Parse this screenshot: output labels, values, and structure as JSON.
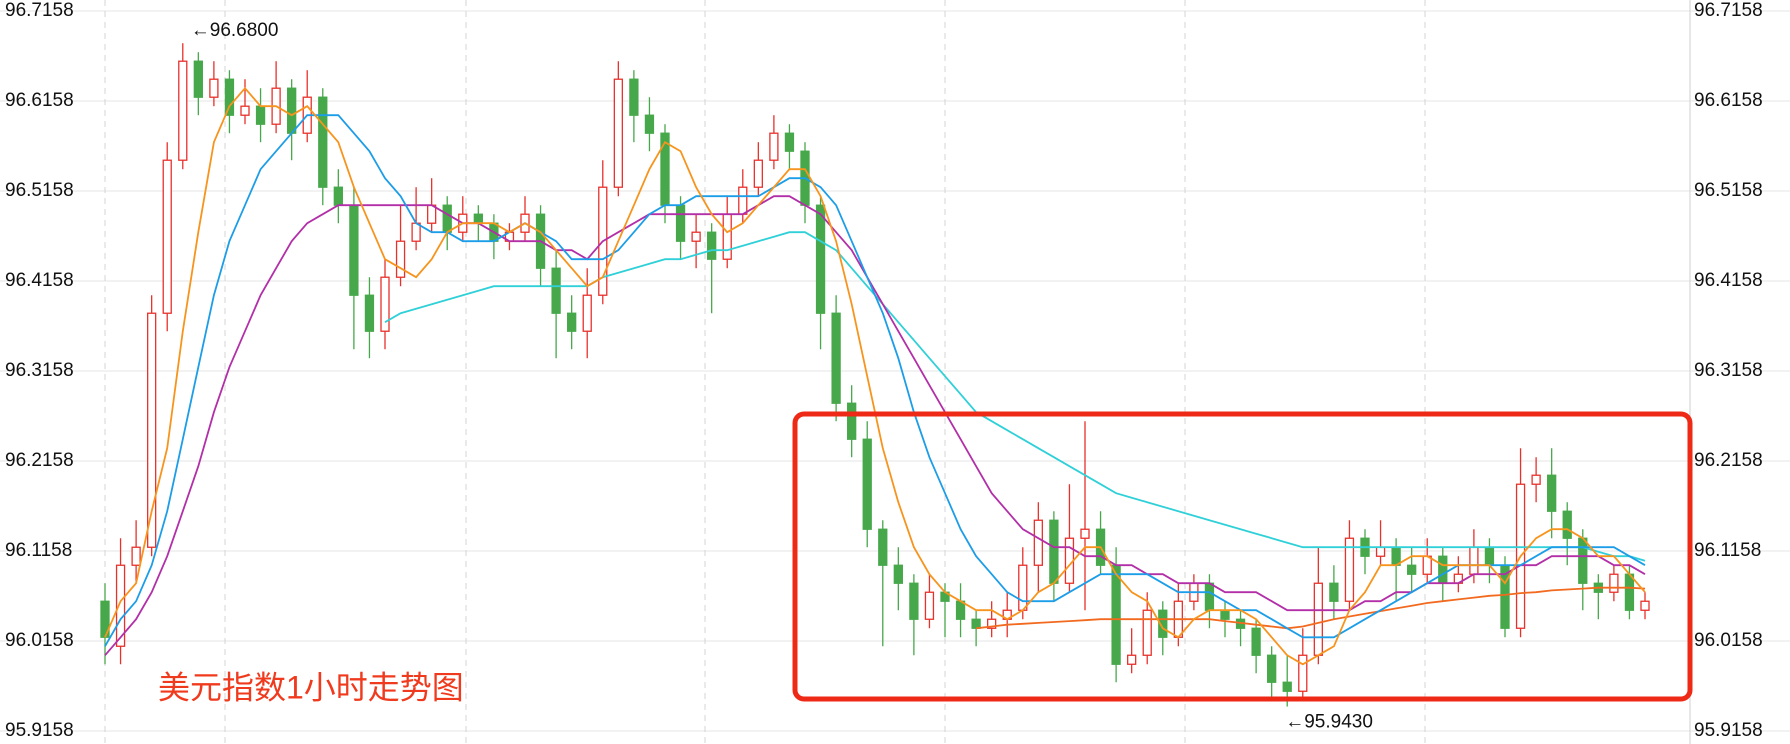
{
  "chart_data": {
    "type": "candlestick",
    "title": "美元指数1小时走势图",
    "annotations": [
      "←96.6800",
      "←95.9430"
    ],
    "ylim": [
      95.9014,
      96.728
    ],
    "yticks": [
      95.9158,
      96.0158,
      96.1158,
      96.2158,
      96.3158,
      96.4158,
      96.5158,
      96.6158,
      96.7158
    ],
    "grid": true,
    "up_color": "#e8312b",
    "down_color": "#47a84b",
    "title_color": "#f03a1e",
    "ohlc": [
      [
        96.06,
        96.08,
        95.99,
        96.02
      ],
      [
        96.01,
        96.13,
        95.99,
        96.1
      ],
      [
        96.1,
        96.15,
        96.08,
        96.12
      ],
      [
        96.12,
        96.4,
        96.11,
        96.38
      ],
      [
        96.38,
        96.57,
        96.36,
        96.55
      ],
      [
        96.55,
        96.68,
        96.54,
        96.66
      ],
      [
        96.66,
        96.67,
        96.6,
        96.62
      ],
      [
        96.62,
        96.66,
        96.61,
        96.64
      ],
      [
        96.64,
        96.65,
        96.58,
        96.6
      ],
      [
        96.6,
        96.64,
        96.59,
        96.61
      ],
      [
        96.61,
        96.63,
        96.57,
        96.59
      ],
      [
        96.59,
        96.66,
        96.58,
        96.63
      ],
      [
        96.63,
        96.64,
        96.55,
        96.58
      ],
      [
        96.58,
        96.65,
        96.57,
        96.62
      ],
      [
        96.62,
        96.63,
        96.5,
        96.52
      ],
      [
        96.52,
        96.54,
        96.48,
        96.5
      ],
      [
        96.5,
        96.52,
        96.34,
        96.4
      ],
      [
        96.4,
        96.42,
        96.33,
        96.36
      ],
      [
        96.36,
        96.44,
        96.34,
        96.42
      ],
      [
        96.42,
        96.5,
        96.41,
        96.46
      ],
      [
        96.46,
        96.52,
        96.45,
        96.48
      ],
      [
        96.48,
        96.53,
        96.47,
        96.5
      ],
      [
        96.5,
        96.51,
        96.45,
        96.47
      ],
      [
        96.47,
        96.51,
        96.46,
        96.49
      ],
      [
        96.49,
        96.5,
        96.46,
        96.48
      ],
      [
        96.48,
        96.49,
        96.44,
        96.46
      ],
      [
        96.46,
        96.48,
        96.45,
        96.47
      ],
      [
        96.47,
        96.51,
        96.46,
        96.49
      ],
      [
        96.49,
        96.5,
        96.41,
        96.43
      ],
      [
        96.43,
        96.45,
        96.33,
        96.38
      ],
      [
        96.38,
        96.4,
        96.34,
        96.36
      ],
      [
        96.36,
        96.43,
        96.33,
        96.4
      ],
      [
        96.4,
        96.55,
        96.39,
        96.52
      ],
      [
        96.52,
        96.66,
        96.51,
        96.64
      ],
      [
        96.64,
        96.65,
        96.57,
        96.6
      ],
      [
        96.6,
        96.62,
        96.56,
        96.58
      ],
      [
        96.58,
        96.59,
        96.48,
        96.5
      ],
      [
        96.5,
        96.51,
        96.44,
        96.46
      ],
      [
        96.46,
        96.49,
        96.43,
        96.47
      ],
      [
        96.47,
        96.48,
        96.38,
        96.44
      ],
      [
        96.44,
        96.51,
        96.43,
        96.49
      ],
      [
        96.49,
        96.54,
        96.48,
        96.52
      ],
      [
        96.52,
        96.57,
        96.51,
        96.55
      ],
      [
        96.55,
        96.6,
        96.54,
        96.58
      ],
      [
        96.58,
        96.59,
        96.54,
        96.56
      ],
      [
        96.56,
        96.57,
        96.48,
        96.5
      ],
      [
        96.5,
        96.51,
        96.34,
        96.38
      ],
      [
        96.38,
        96.4,
        96.26,
        96.28
      ],
      [
        96.28,
        96.3,
        96.22,
        96.24
      ],
      [
        96.24,
        96.26,
        96.12,
        96.14
      ],
      [
        96.14,
        96.15,
        96.01,
        96.1
      ],
      [
        96.1,
        96.12,
        96.05,
        96.08
      ],
      [
        96.08,
        96.09,
        96.0,
        96.04
      ],
      [
        96.04,
        96.09,
        96.03,
        96.07
      ],
      [
        96.07,
        96.08,
        96.02,
        96.06
      ],
      [
        96.06,
        96.08,
        96.02,
        96.04
      ],
      [
        96.04,
        96.05,
        96.01,
        96.03
      ],
      [
        96.03,
        96.06,
        96.02,
        96.04
      ],
      [
        96.04,
        96.07,
        96.02,
        96.05
      ],
      [
        96.05,
        96.12,
        96.04,
        96.1
      ],
      [
        96.1,
        96.17,
        96.07,
        96.15
      ],
      [
        96.15,
        96.16,
        96.06,
        96.08
      ],
      [
        96.08,
        96.19,
        96.07,
        96.13
      ],
      [
        96.13,
        96.26,
        96.05,
        96.14
      ],
      [
        96.14,
        96.16,
        96.09,
        96.1
      ],
      [
        96.1,
        96.12,
        95.97,
        95.99
      ],
      [
        95.99,
        96.03,
        95.98,
        96.0
      ],
      [
        96.0,
        96.07,
        95.99,
        96.05
      ],
      [
        96.05,
        96.06,
        96.0,
        96.02
      ],
      [
        96.02,
        96.08,
        96.01,
        96.06
      ],
      [
        96.06,
        96.09,
        96.05,
        96.08
      ],
      [
        96.08,
        96.09,
        96.03,
        96.05
      ],
      [
        96.05,
        96.06,
        96.02,
        96.04
      ],
      [
        96.04,
        96.05,
        96.01,
        96.03
      ],
      [
        96.03,
        96.04,
        95.98,
        96.0
      ],
      [
        96.0,
        96.01,
        95.95,
        95.97
      ],
      [
        95.97,
        96.0,
        95.943,
        95.96
      ],
      [
        95.96,
        96.03,
        95.95,
        96.0
      ],
      [
        96.0,
        96.12,
        95.99,
        96.08
      ],
      [
        96.08,
        96.1,
        96.04,
        96.06
      ],
      [
        96.06,
        96.15,
        96.05,
        96.13
      ],
      [
        96.13,
        96.14,
        96.09,
        96.11
      ],
      [
        96.11,
        96.15,
        96.1,
        96.12
      ],
      [
        96.12,
        96.13,
        96.06,
        96.1
      ],
      [
        96.1,
        96.12,
        96.07,
        96.09
      ],
      [
        96.09,
        96.13,
        96.08,
        96.11
      ],
      [
        96.11,
        96.12,
        96.06,
        96.08
      ],
      [
        96.08,
        96.11,
        96.07,
        96.09
      ],
      [
        96.09,
        96.14,
        96.08,
        96.12
      ],
      [
        96.12,
        96.13,
        96.08,
        96.1
      ],
      [
        96.1,
        96.11,
        96.02,
        96.03
      ],
      [
        96.03,
        96.23,
        96.02,
        96.19
      ],
      [
        96.19,
        96.22,
        96.17,
        96.2
      ],
      [
        96.2,
        96.23,
        96.13,
        96.16
      ],
      [
        96.16,
        96.17,
        96.1,
        96.13
      ],
      [
        96.13,
        96.14,
        96.05,
        96.08
      ],
      [
        96.08,
        96.09,
        96.04,
        96.07
      ],
      [
        96.07,
        96.1,
        96.06,
        96.09
      ],
      [
        96.09,
        96.1,
        96.04,
        96.05
      ],
      [
        96.05,
        96.07,
        96.04,
        96.06
      ]
    ],
    "moving_averages": [
      {
        "color": "#2fd0d8",
        "values": [
          null,
          null,
          null,
          null,
          null,
          null,
          null,
          null,
          null,
          null,
          null,
          null,
          null,
          null,
          null,
          null,
          null,
          null,
          96.37,
          96.38,
          96.385,
          96.39,
          96.395,
          96.4,
          96.405,
          96.41,
          96.41,
          96.41,
          96.41,
          96.41,
          96.41,
          96.41,
          96.42,
          96.425,
          96.43,
          96.435,
          96.44,
          96.44,
          96.445,
          96.45,
          96.45,
          96.455,
          96.46,
          96.465,
          96.47,
          96.47,
          96.46,
          96.45,
          96.43,
          96.41,
          96.39,
          96.37,
          96.35,
          96.33,
          96.31,
          96.29,
          96.27,
          96.26,
          96.25,
          96.24,
          96.23,
          96.22,
          96.21,
          96.2,
          96.19,
          96.18,
          96.175,
          96.17,
          96.165,
          96.16,
          96.155,
          96.15,
          96.145,
          96.14,
          96.135,
          96.13,
          96.125,
          96.12,
          96.12,
          96.12,
          96.12,
          96.12,
          96.12,
          96.12,
          96.12,
          96.12,
          96.12,
          96.12,
          96.12,
          96.12,
          96.12,
          96.12,
          96.12,
          96.12,
          96.12,
          96.12,
          96.115,
          96.11,
          96.11,
          96.105
        ]
      },
      {
        "color": "#f26a1f",
        "values": [
          null,
          null,
          null,
          null,
          null,
          null,
          null,
          null,
          null,
          null,
          null,
          null,
          null,
          null,
          null,
          null,
          null,
          null,
          null,
          null,
          null,
          null,
          null,
          null,
          null,
          null,
          null,
          null,
          null,
          null,
          null,
          null,
          null,
          null,
          null,
          null,
          null,
          null,
          null,
          null,
          null,
          null,
          null,
          null,
          null,
          null,
          null,
          null,
          null,
          null,
          null,
          null,
          null,
          null,
          null,
          null,
          96.03,
          96.032,
          96.034,
          96.035,
          96.036,
          96.037,
          96.038,
          96.039,
          96.04,
          96.04,
          96.04,
          96.04,
          96.04,
          96.04,
          96.04,
          96.04,
          96.038,
          96.036,
          96.034,
          96.032,
          96.03,
          96.032,
          96.036,
          96.04,
          96.043,
          96.046,
          96.049,
          96.052,
          96.055,
          96.058,
          96.06,
          96.062,
          96.064,
          96.066,
          96.067,
          96.069,
          96.07,
          96.072,
          96.073,
          96.074,
          96.075,
          96.075,
          96.075,
          96.074
        ]
      },
      {
        "color": "#b22fa8",
        "values": [
          96.0,
          96.02,
          96.04,
          96.07,
          96.11,
          96.16,
          96.21,
          96.27,
          96.32,
          96.36,
          96.4,
          96.43,
          96.46,
          96.48,
          96.49,
          96.5,
          96.5,
          96.5,
          96.5,
          96.5,
          96.5,
          96.5,
          96.49,
          96.48,
          96.48,
          96.47,
          96.46,
          96.46,
          96.46,
          96.45,
          96.45,
          96.44,
          96.46,
          96.47,
          96.48,
          96.49,
          96.49,
          96.49,
          96.49,
          96.49,
          96.49,
          96.49,
          96.5,
          96.51,
          96.51,
          96.5,
          96.49,
          96.47,
          96.45,
          96.42,
          96.39,
          96.36,
          96.33,
          96.3,
          96.27,
          96.24,
          96.21,
          96.18,
          96.16,
          96.14,
          96.13,
          96.12,
          96.12,
          96.11,
          96.11,
          96.1,
          96.1,
          96.09,
          96.09,
          96.08,
          96.08,
          96.08,
          96.07,
          96.07,
          96.07,
          96.06,
          96.05,
          96.05,
          96.05,
          96.05,
          96.05,
          96.06,
          96.06,
          96.07,
          96.07,
          96.08,
          96.08,
          96.08,
          96.09,
          96.09,
          96.09,
          96.1,
          96.1,
          96.11,
          96.11,
          96.11,
          96.11,
          96.1,
          96.1,
          96.09
        ]
      },
      {
        "color": "#1c9de8",
        "values": [
          96.01,
          96.04,
          96.06,
          96.1,
          96.16,
          96.24,
          96.32,
          96.4,
          96.46,
          96.5,
          96.54,
          96.56,
          96.58,
          96.6,
          96.6,
          96.6,
          96.58,
          96.56,
          96.53,
          96.51,
          96.48,
          96.47,
          96.47,
          96.46,
          96.46,
          96.46,
          96.47,
          96.48,
          96.47,
          96.46,
          96.44,
          96.44,
          96.44,
          96.45,
          96.47,
          96.49,
          96.5,
          96.5,
          96.51,
          96.51,
          96.51,
          96.51,
          96.51,
          96.52,
          96.53,
          96.53,
          96.52,
          96.5,
          96.46,
          96.42,
          96.38,
          96.33,
          96.27,
          96.22,
          96.18,
          96.14,
          96.11,
          96.09,
          96.07,
          96.06,
          96.06,
          96.06,
          96.07,
          96.08,
          96.09,
          96.09,
          96.09,
          96.09,
          96.08,
          96.07,
          96.07,
          96.07,
          96.06,
          96.05,
          96.05,
          96.04,
          96.03,
          96.02,
          96.02,
          96.02,
          96.03,
          96.04,
          96.05,
          96.06,
          96.07,
          96.08,
          96.09,
          96.1,
          96.1,
          96.1,
          96.1,
          96.1,
          96.11,
          96.12,
          96.12,
          96.12,
          96.12,
          96.12,
          96.11,
          96.1
        ]
      },
      {
        "color": "#f7941d",
        "values": [
          96.02,
          96.06,
          96.08,
          96.16,
          96.23,
          96.36,
          96.47,
          96.57,
          96.61,
          96.63,
          96.61,
          96.61,
          96.6,
          96.61,
          96.59,
          96.57,
          96.52,
          96.48,
          96.44,
          96.43,
          96.42,
          96.44,
          96.47,
          96.48,
          96.48,
          96.48,
          96.47,
          96.48,
          96.47,
          96.45,
          96.43,
          96.41,
          96.42,
          96.46,
          96.5,
          96.54,
          96.57,
          96.56,
          96.52,
          96.49,
          96.47,
          96.48,
          96.5,
          96.52,
          96.54,
          96.54,
          96.51,
          96.46,
          96.39,
          96.31,
          96.23,
          96.17,
          96.12,
          96.09,
          96.07,
          96.06,
          96.05,
          96.05,
          96.04,
          96.05,
          96.07,
          96.08,
          96.1,
          96.12,
          96.12,
          96.09,
          96.07,
          96.06,
          96.03,
          96.02,
          96.04,
          96.05,
          96.05,
          96.05,
          96.04,
          96.02,
          96.0,
          95.99,
          96.0,
          96.01,
          96.05,
          96.07,
          96.1,
          96.1,
          96.11,
          96.11,
          96.1,
          96.1,
          96.1,
          96.1,
          96.08,
          96.11,
          96.13,
          96.14,
          96.14,
          96.13,
          96.11,
          96.11,
          96.09,
          96.07
        ]
      }
    ]
  }
}
